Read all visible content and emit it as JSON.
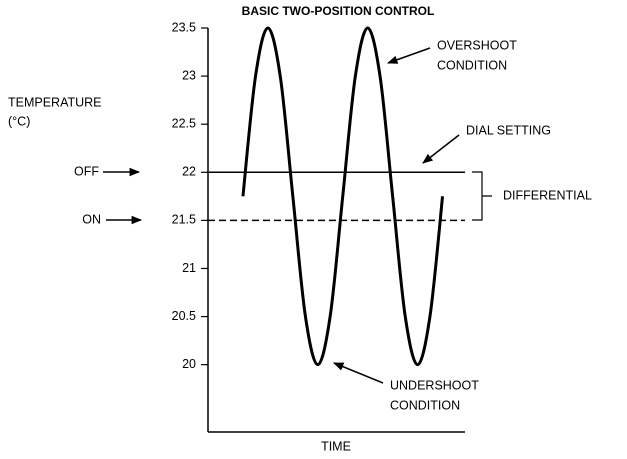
{
  "chart_data": {
    "type": "line",
    "title": "BASIC TWO-POSITION CONTROL",
    "xlabel": "TIME",
    "ylabel": [
      "TEMPERATURE",
      "(°C)"
    ],
    "x": [
      1.4,
      1.9,
      2.4,
      2.9,
      3.4,
      3.9,
      4.4,
      4.9,
      5.4,
      5.9,
      6.4,
      6.9,
      7.4,
      7.9,
      8.4,
      8.9,
      9.4
    ],
    "values": [
      21.75,
      22.99,
      23.5,
      22.99,
      21.75,
      20.51,
      20,
      20.51,
      21.75,
      22.99,
      23.5,
      22.99,
      21.75,
      20.51,
      20,
      20.51,
      21.75
    ],
    "color": "#000000",
    "xlim": [
      0,
      10.3
    ],
    "ylim": [
      19.3,
      23.5
    ],
    "yticks": [
      20,
      20.5,
      21,
      21.5,
      22,
      22.5,
      23,
      23.5
    ],
    "reference_lines": [
      {
        "value": 22,
        "dashed": false
      },
      {
        "value": 21.5,
        "dashed": true
      }
    ],
    "annotations": [
      {
        "lines": [
          "OFF"
        ]
      },
      {
        "lines": [
          "ON"
        ]
      },
      {
        "lines": [
          "OVERSHOOT",
          "CONDITION"
        ]
      },
      {
        "lines": [
          "DIAL SETTING"
        ]
      },
      {
        "lines": [
          "DIFFERENTIAL"
        ]
      },
      {
        "lines": [
          "UNDERSHOOT",
          "CONDITION"
        ]
      }
    ]
  }
}
